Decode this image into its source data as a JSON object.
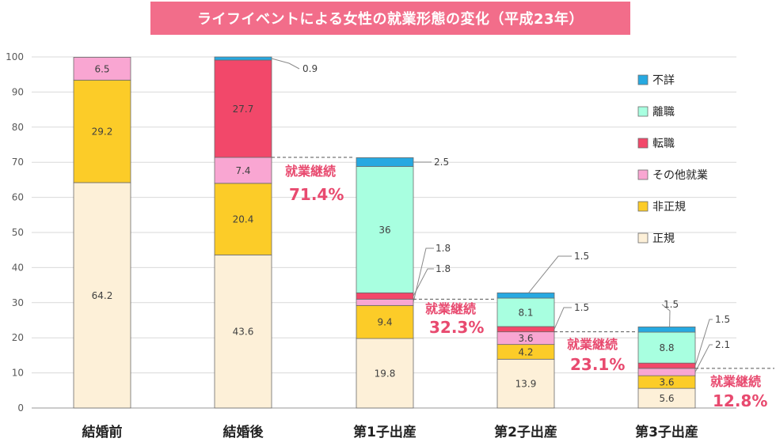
{
  "title": "ライフイベントによる女性の就業形態の変化（平成23年）",
  "chart_data": {
    "type": "bar",
    "stacked": true,
    "categories": [
      "結婚前",
      "結婚後",
      "第1子出産",
      "第2子出産",
      "第3子出産"
    ],
    "ylim": [
      0,
      100
    ],
    "yticks": [
      0,
      10,
      20,
      30,
      40,
      50,
      60,
      70,
      80,
      90,
      100
    ],
    "grid": true,
    "legend_position": "right",
    "series": [
      {
        "name": "正規",
        "color": "#fdf0d8",
        "values": [
          64.2,
          43.6,
          19.8,
          13.9,
          5.6
        ]
      },
      {
        "name": "非正規",
        "color": "#fccc28",
        "values": [
          29.2,
          20.4,
          9.4,
          4.2,
          3.6
        ]
      },
      {
        "name": "その他就業",
        "color": "#f9a6d2",
        "values": [
          6.5,
          7.4,
          1.8,
          3.6,
          2.1
        ]
      },
      {
        "name": "転職",
        "color": "#f2486a",
        "values": [
          0,
          27.7,
          1.8,
          1.5,
          1.5
        ]
      },
      {
        "name": "離職",
        "color": "#a8ffe0",
        "values": [
          0,
          0,
          36,
          8.1,
          8.8
        ]
      },
      {
        "name": "不詳",
        "color": "#27a9e1",
        "values": [
          0,
          0.9,
          2.5,
          1.5,
          1.5
        ]
      }
    ],
    "continuation_label": "就業継続",
    "continuation_values": [
      "71.4%",
      "32.3%",
      "23.1%",
      "12.8%"
    ]
  },
  "colors": {
    "accent": "#f26d8a",
    "annotation_text": "#e84a6f"
  }
}
